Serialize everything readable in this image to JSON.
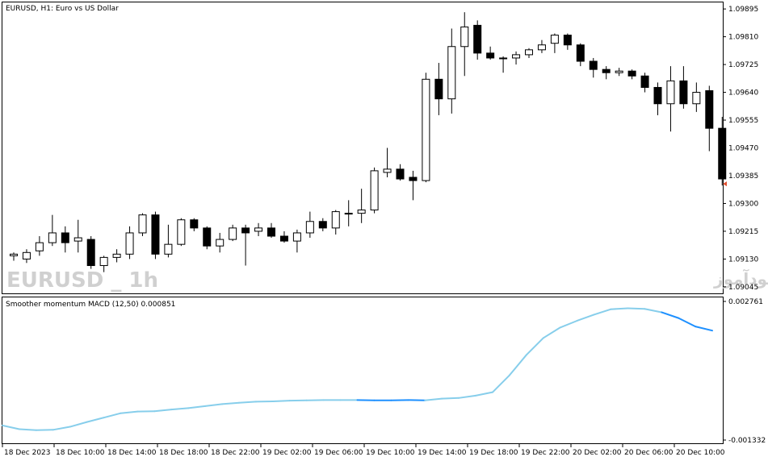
{
  "header": {
    "main_title": "EURUSD, H1:  Euro vs US Dollar",
    "indicator_title": "Smoother momentum MACD (12,50) 0.000851"
  },
  "watermark": {
    "symbol_text": "EURUSD _ 1h",
    "site_text": "انتشار در سایت سودآموز"
  },
  "colors": {
    "background": "#ffffff",
    "frame": "#000000",
    "bull_body": "#ffffff",
    "bear_body": "#000000",
    "macd_line_light": "#87ceeb",
    "macd_line_dark": "#1e90ff",
    "watermark": "#d0d0d0"
  },
  "chart_data": [
    {
      "type": "candlestick",
      "symbol": "EURUSD",
      "timeframe": "H1",
      "title": "EURUSD, H1:  Euro vs US Dollar",
      "y_ticks": [
        "1.09895",
        "1.09810",
        "1.09725",
        "1.09640",
        "1.09555",
        "1.09470",
        "1.09385",
        "1.09300",
        "1.09215",
        "1.09130",
        "1.09045"
      ],
      "ylim": [
        1.09025,
        1.09915
      ],
      "grid": false,
      "candles": [
        {
          "o": 1.0914,
          "h": 1.0915,
          "l": 1.09125,
          "c": 1.09145
        },
        {
          "o": 1.0913,
          "h": 1.0916,
          "l": 1.09118,
          "c": 1.0915
        },
        {
          "o": 1.09155,
          "h": 1.092,
          "l": 1.0914,
          "c": 1.0918
        },
        {
          "o": 1.0918,
          "h": 1.09265,
          "l": 1.0917,
          "c": 1.0921
        },
        {
          "o": 1.0921,
          "h": 1.0923,
          "l": 1.0915,
          "c": 1.0918
        },
        {
          "o": 1.09185,
          "h": 1.0925,
          "l": 1.0915,
          "c": 1.09195
        },
        {
          "o": 1.0919,
          "h": 1.092,
          "l": 1.091,
          "c": 1.0911
        },
        {
          "o": 1.0911,
          "h": 1.0914,
          "l": 1.0909,
          "c": 1.09135
        },
        {
          "o": 1.09135,
          "h": 1.0916,
          "l": 1.0912,
          "c": 1.09145
        },
        {
          "o": 1.09145,
          "h": 1.0923,
          "l": 1.0913,
          "c": 1.0921
        },
        {
          "o": 1.0921,
          "h": 1.0927,
          "l": 1.092,
          "c": 1.09265
        },
        {
          "o": 1.09265,
          "h": 1.09275,
          "l": 1.0913,
          "c": 1.09145
        },
        {
          "o": 1.09145,
          "h": 1.09235,
          "l": 1.09135,
          "c": 1.09175
        },
        {
          "o": 1.09175,
          "h": 1.09255,
          "l": 1.0917,
          "c": 1.0925
        },
        {
          "o": 1.0925,
          "h": 1.09255,
          "l": 1.09215,
          "c": 1.09225
        },
        {
          "o": 1.09225,
          "h": 1.0923,
          "l": 1.0916,
          "c": 1.0917
        },
        {
          "o": 1.0917,
          "h": 1.0921,
          "l": 1.0915,
          "c": 1.0919
        },
        {
          "o": 1.0919,
          "h": 1.09235,
          "l": 1.09185,
          "c": 1.09225
        },
        {
          "o": 1.09225,
          "h": 1.09235,
          "l": 1.0911,
          "c": 1.0921
        },
        {
          "o": 1.09215,
          "h": 1.0924,
          "l": 1.092,
          "c": 1.09225
        },
        {
          "o": 1.09225,
          "h": 1.0924,
          "l": 1.09195,
          "c": 1.092
        },
        {
          "o": 1.092,
          "h": 1.09215,
          "l": 1.0918,
          "c": 1.09185
        },
        {
          "o": 1.09185,
          "h": 1.0922,
          "l": 1.0915,
          "c": 1.0921
        },
        {
          "o": 1.0921,
          "h": 1.09275,
          "l": 1.09195,
          "c": 1.09245
        },
        {
          "o": 1.09245,
          "h": 1.09255,
          "l": 1.09215,
          "c": 1.09225
        },
        {
          "o": 1.09225,
          "h": 1.0928,
          "l": 1.09205,
          "c": 1.09275
        },
        {
          "o": 1.0927,
          "h": 1.0931,
          "l": 1.0923,
          "c": 1.0927
        },
        {
          "o": 1.0927,
          "h": 1.09345,
          "l": 1.0924,
          "c": 1.0928
        },
        {
          "o": 1.0928,
          "h": 1.0941,
          "l": 1.0927,
          "c": 1.094
        },
        {
          "o": 1.09395,
          "h": 1.0947,
          "l": 1.0938,
          "c": 1.09405
        },
        {
          "o": 1.09405,
          "h": 1.0942,
          "l": 1.0937,
          "c": 1.09375
        },
        {
          "o": 1.0938,
          "h": 1.094,
          "l": 1.0931,
          "c": 1.0937
        },
        {
          "o": 1.0937,
          "h": 1.097,
          "l": 1.09365,
          "c": 1.0968
        },
        {
          "o": 1.0968,
          "h": 1.0973,
          "l": 1.0957,
          "c": 1.0962
        },
        {
          "o": 1.0962,
          "h": 1.09835,
          "l": 1.09575,
          "c": 1.0978
        },
        {
          "o": 1.0978,
          "h": 1.09885,
          "l": 1.0969,
          "c": 1.0984
        },
        {
          "o": 1.09845,
          "h": 1.0986,
          "l": 1.0974,
          "c": 1.0976
        },
        {
          "o": 1.0976,
          "h": 1.0978,
          "l": 1.0974,
          "c": 1.09745
        },
        {
          "o": 1.09745,
          "h": 1.0975,
          "l": 1.097,
          "c": 1.09745
        },
        {
          "o": 1.09745,
          "h": 1.09765,
          "l": 1.09725,
          "c": 1.09755
        },
        {
          "o": 1.09755,
          "h": 1.09775,
          "l": 1.09745,
          "c": 1.0977
        },
        {
          "o": 1.0977,
          "h": 1.098,
          "l": 1.0976,
          "c": 1.09785
        },
        {
          "o": 1.0979,
          "h": 1.0982,
          "l": 1.0976,
          "c": 1.09815
        },
        {
          "o": 1.09815,
          "h": 1.0982,
          "l": 1.0977,
          "c": 1.09785
        },
        {
          "o": 1.09785,
          "h": 1.0979,
          "l": 1.0972,
          "c": 1.09735
        },
        {
          "o": 1.09735,
          "h": 1.09745,
          "l": 1.09685,
          "c": 1.0971
        },
        {
          "o": 1.0971,
          "h": 1.0972,
          "l": 1.0968,
          "c": 1.097
        },
        {
          "o": 1.097,
          "h": 1.09715,
          "l": 1.0969,
          "c": 1.09705
        },
        {
          "o": 1.09705,
          "h": 1.0971,
          "l": 1.0968,
          "c": 1.0969
        },
        {
          "o": 1.0969,
          "h": 1.097,
          "l": 1.0964,
          "c": 1.09655
        },
        {
          "o": 1.09655,
          "h": 1.0967,
          "l": 1.0957,
          "c": 1.09605
        },
        {
          "o": 1.09605,
          "h": 1.0972,
          "l": 1.0952,
          "c": 1.09675
        },
        {
          "o": 1.09675,
          "h": 1.0972,
          "l": 1.0959,
          "c": 1.09605
        },
        {
          "o": 1.09605,
          "h": 1.0967,
          "l": 1.0958,
          "c": 1.0964
        },
        {
          "o": 1.09645,
          "h": 1.0966,
          "l": 1.0946,
          "c": 1.0953
        },
        {
          "o": 1.0953,
          "h": 1.09565,
          "l": 1.09355,
          "c": 1.09375
        }
      ],
      "last_price_marker": 1.0936,
      "x_ticks": [
        "18 Dec 2023",
        "18 Dec 10:00",
        "18 Dec 14:00",
        "18 Dec 18:00",
        "18 Dec 22:00",
        "19 Dec 02:00",
        "19 Dec 06:00",
        "19 Dec 10:00",
        "19 Dec 14:00",
        "19 Dec 18:00",
        "19 Dec 22:00",
        "20 Dec 02:00",
        "20 Dec 06:00",
        "20 Dec 10:00"
      ]
    },
    {
      "type": "line",
      "title": "Smoother momentum MACD (12,50) 0.000851",
      "current_value": "0.000851",
      "y_ticks": [
        "0.002761",
        "-0.001332"
      ],
      "ylim": [
        -0.001332,
        0.002761
      ],
      "grid": false,
      "series": [
        {
          "values": [
            -0.0009,
            -0.00101,
            -0.00104,
            -0.00103,
            -0.00094,
            -0.0008,
            -0.00067,
            -0.00054,
            -0.00049,
            -0.00048,
            -0.00043,
            -0.00039,
            -0.00033,
            -0.00027,
            -0.00023,
            -0.0002,
            -0.00019,
            -0.00017,
            -0.00016,
            -0.00015,
            -0.00015,
            -0.00015,
            -0.00016,
            -0.00016,
            -0.00015,
            -0.00016,
            -0.00011,
            -9e-05,
            -2e-05,
            8e-05,
            0.00058,
            0.00118,
            0.00168,
            0.00199,
            0.00219,
            0.00237,
            0.00253,
            0.00256,
            0.00254,
            0.00244,
            0.00227,
            0.00202,
            0.0019
          ]
        }
      ]
    }
  ]
}
